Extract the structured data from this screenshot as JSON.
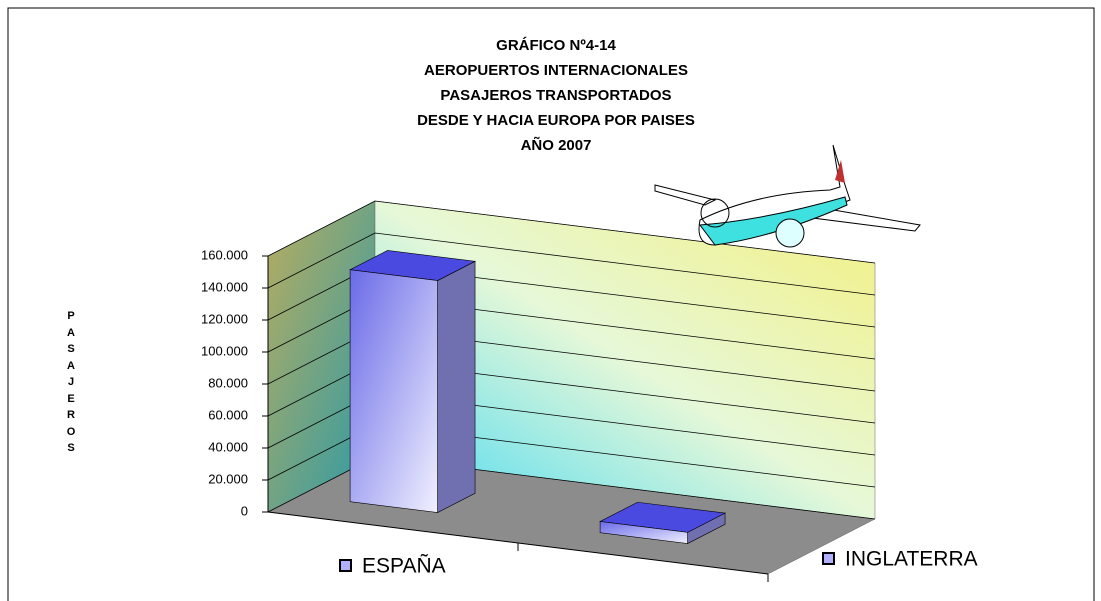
{
  "chart_data": {
    "type": "bar3d",
    "title": [
      "GRÁFICO Nº4-14",
      "AEROPUERTOS INTERNACIONALES",
      "PASAJEROS TRANSPORTADOS",
      "DESDE Y HACIA EUROPA POR PAISES",
      "AÑO 2007"
    ],
    "y_label": "PASAJEROS",
    "categories": [
      "ESPAÑA",
      "INGLATERRA"
    ],
    "values": [
      145000,
      7000
    ],
    "color": "#4a4ae0",
    "ylim": [
      0,
      160000
    ],
    "yticks": [
      0,
      {
        "value": 20000,
        "label": "20.000"
      },
      {
        "value": 40000,
        "label": "40.000"
      },
      {
        "value": 60000,
        "label": "60.000"
      },
      {
        "value": 80000,
        "label": "80.000"
      },
      {
        "value": 100000,
        "label": "100.000"
      },
      {
        "value": 120000,
        "label": "120.000"
      },
      {
        "value": 140000,
        "label": "140.000"
      },
      {
        "value": 160000,
        "label": "160.000"
      }
    ],
    "grid": true
  }
}
